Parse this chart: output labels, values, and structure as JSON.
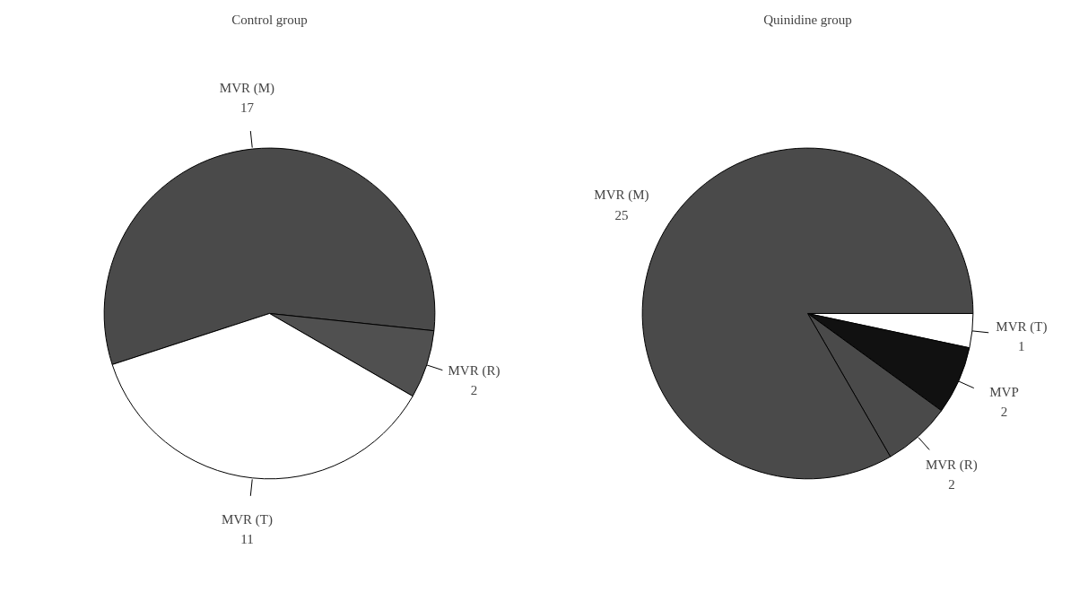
{
  "chart_data": [
    {
      "type": "pie",
      "title": "Control group",
      "categories": [
        "MVR (M)",
        "MVR (R)",
        "MVR (T)"
      ],
      "values": [
        17,
        2,
        11
      ],
      "colors": [
        "#4a4a4a",
        "#505050",
        "#ffffff"
      ],
      "data_labels": true
    },
    {
      "type": "pie",
      "title": "Quinidine group",
      "categories": [
        "MVR (T)",
        "MVP",
        "MVR (R)",
        "MVR (M)"
      ],
      "values": [
        1,
        2,
        2,
        25
      ],
      "colors": [
        "#ffffff",
        "#111111",
        "#4a4a4a",
        "#4a4a4a"
      ],
      "data_labels": true
    }
  ]
}
